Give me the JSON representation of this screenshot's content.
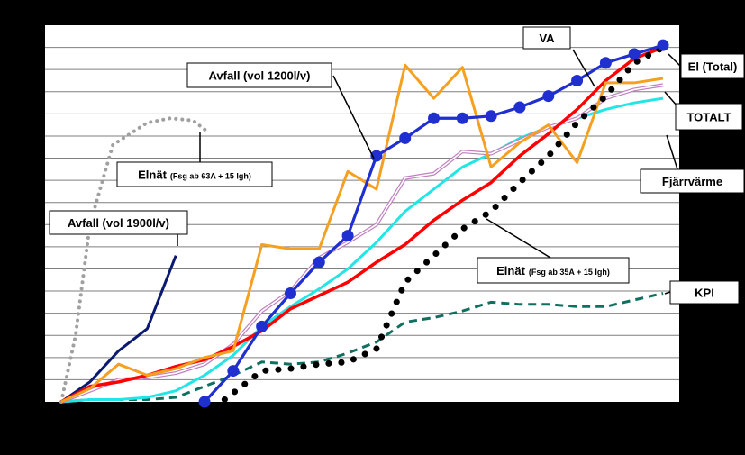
{
  "colors": {
    "background": "#000000",
    "plot_background": "#ffffff",
    "grid": "#7f7f7f"
  },
  "chart_data": {
    "type": "line",
    "title": "",
    "xlabel": "",
    "ylabel": "",
    "xlim": [
      0,
      21
    ],
    "ylim": [
      0,
      17
    ],
    "grid": "horizontal",
    "legend": "inline labels with pointer lines",
    "series": [
      {
        "key": "va",
        "name": "VA",
        "color": "#1f2fd0",
        "style": "solid-markers",
        "x": [
          5,
          6,
          7,
          8,
          9,
          10,
          11,
          12,
          13,
          14,
          15,
          16,
          17,
          18,
          19,
          20,
          21
        ],
        "y": [
          0,
          1.4,
          3.4,
          4.9,
          6.3,
          7.5,
          11.1,
          11.9,
          12.8,
          12.8,
          12.9,
          13.3,
          13.8,
          14.5,
          15.3,
          15.7,
          16.1
        ]
      },
      {
        "key": "el",
        "name": "El (Total)",
        "color": "#ff0000",
        "style": "solid",
        "x": [
          0,
          1,
          2,
          3,
          4,
          5,
          6,
          7,
          8,
          9,
          10,
          11,
          12,
          13,
          14,
          15,
          16,
          17,
          18,
          19,
          20,
          21
        ],
        "y": [
          0,
          0.7,
          0.9,
          1.2,
          1.6,
          1.9,
          2.5,
          3.2,
          4.2,
          4.8,
          5.4,
          6.3,
          7.1,
          8.2,
          9.1,
          9.9,
          11.1,
          12.1,
          13.2,
          14.5,
          15.5,
          16.0
        ]
      },
      {
        "key": "totalt",
        "name": "TOTALT",
        "color": "#c080c0",
        "style": "double",
        "x": [
          0,
          1,
          2,
          3,
          4,
          5,
          6,
          7,
          8,
          9,
          10,
          11,
          12,
          13,
          14,
          15,
          16,
          17,
          18,
          19,
          20,
          21
        ],
        "y": [
          0,
          0.5,
          1.0,
          1.1,
          1.3,
          1.7,
          2.6,
          4.1,
          5.0,
          6.5,
          7.2,
          8.0,
          10.1,
          10.3,
          11.3,
          11.2,
          11.8,
          12.4,
          12.8,
          13.7,
          14.1,
          14.3
        ]
      },
      {
        "key": "fjarr",
        "name": "Fjärrvärme",
        "color": "#22e6e6",
        "style": "solid",
        "x": [
          0,
          1,
          2,
          3,
          4,
          5,
          6,
          7,
          8,
          9,
          10,
          11,
          12,
          13,
          14,
          15,
          16,
          17,
          18,
          19,
          20,
          21
        ],
        "y": [
          0,
          0.1,
          0.1,
          0.2,
          0.5,
          1.2,
          2.1,
          3.4,
          4.3,
          5.1,
          6.0,
          7.2,
          8.6,
          9.6,
          10.6,
          11.2,
          11.9,
          12.4,
          12.8,
          13.2,
          13.5,
          13.7
        ]
      },
      {
        "key": "avf1200",
        "name": "Avfall (vol 1200l/v)",
        "color": "#f5a020",
        "style": "solid",
        "x": [
          0,
          1,
          2,
          3,
          4,
          5,
          6,
          7,
          8,
          9,
          10,
          11,
          12,
          13,
          14,
          15,
          16,
          17,
          18,
          19,
          20,
          21
        ],
        "y": [
          0,
          0.6,
          1.7,
          1.2,
          1.5,
          2.0,
          2.3,
          7.1,
          6.9,
          6.9,
          10.4,
          9.6,
          15.2,
          13.7,
          15.1,
          10.6,
          11.7,
          12.5,
          10.8,
          14.4,
          14.4,
          14.6
        ]
      },
      {
        "key": "avf1900",
        "name": "Avfall (vol 1900l/v)",
        "color": "#0a1a70",
        "style": "solid",
        "x": [
          0,
          1,
          2,
          3,
          4
        ],
        "y": [
          0,
          0.9,
          2.3,
          3.3,
          6.6
        ]
      },
      {
        "key": "eln63",
        "name": "Elnät",
        "name_suffix": "(Fsg ab 63A + 15 lgh)",
        "color": "#a0a0a0",
        "style": "dotted",
        "x": [
          0,
          0.5,
          1,
          1.8,
          3,
          3.8,
          4.6,
          5.1
        ],
        "y": [
          0,
          3.0,
          8.0,
          11.6,
          12.6,
          12.8,
          12.7,
          12.2
        ]
      },
      {
        "key": "eln35",
        "name": "Elnät",
        "name_suffix": "(Fsg ab 35A + 15 lgh)",
        "color": "#000000",
        "style": "dotted-large",
        "x": [
          5,
          6,
          7,
          8,
          9,
          10,
          11,
          12,
          13,
          14,
          15,
          16,
          17,
          18,
          19,
          20,
          21
        ],
        "y": [
          -0.6,
          0.4,
          1.4,
          1.5,
          1.7,
          1.8,
          2.4,
          5.4,
          6.6,
          7.8,
          8.6,
          9.9,
          11.1,
          12.6,
          13.8,
          15.3,
          16.0
        ]
      },
      {
        "key": "kpi",
        "name": "KPI",
        "color": "#107060",
        "style": "dashed",
        "x": [
          0,
          1,
          2,
          3,
          4,
          5,
          6,
          7,
          8,
          9,
          10,
          11,
          12,
          13,
          14,
          15,
          16,
          17,
          18,
          19,
          20,
          21
        ],
        "y": [
          0,
          0.1,
          0.1,
          0.1,
          0.2,
          0.7,
          1.2,
          1.8,
          1.7,
          1.8,
          2.2,
          2.7,
          3.6,
          3.8,
          4.1,
          4.5,
          4.4,
          4.4,
          4.3,
          4.3,
          4.6,
          4.9
        ]
      }
    ],
    "annotations": [
      {
        "key": "va",
        "text": "VA"
      },
      {
        "key": "el",
        "text": "El (Total)"
      },
      {
        "key": "totalt",
        "text": "TOTALT"
      },
      {
        "key": "fjarr",
        "text": "Fjärrvärme"
      },
      {
        "key": "avf1200",
        "text": "Avfall (vol 1200l/v)"
      },
      {
        "key": "avf1900",
        "text": "Avfall (vol 1900l/v)"
      },
      {
        "key": "eln63",
        "text": "Elnät",
        "small": "(Fsg ab 63A + 15 lgh)"
      },
      {
        "key": "eln35",
        "text": "Elnät",
        "small": "(Fsg ab 35A + 15 lgh)"
      },
      {
        "key": "kpi",
        "text": "KPI"
      }
    ]
  }
}
